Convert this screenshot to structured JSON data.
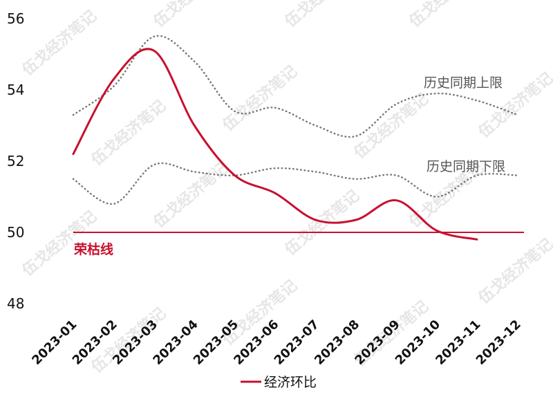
{
  "chart_data": {
    "type": "line",
    "categories": [
      "2023-01",
      "2023-02",
      "2023-03",
      "2023-04",
      "2023-05",
      "2023-06",
      "2023-07",
      "2023-08",
      "2023-09",
      "2023-10",
      "2023-11",
      "2023-12"
    ],
    "ylim": [
      48,
      56
    ],
    "yticks": [
      "56",
      "54",
      "52",
      "50",
      "48"
    ],
    "grid": false,
    "series": [
      {
        "name": "经济环比",
        "color": "#c8102e",
        "style": "solid",
        "values": [
          52.2,
          54.3,
          55.1,
          53.0,
          51.6,
          51.1,
          50.35,
          50.35,
          50.9,
          50.05,
          49.8,
          null
        ]
      },
      {
        "name": "历史同期上限",
        "color": "#777777",
        "style": "dotted",
        "values": [
          53.3,
          54.1,
          55.5,
          54.8,
          53.4,
          53.5,
          53.0,
          52.7,
          53.6,
          53.9,
          53.7,
          53.3
        ]
      },
      {
        "name": "历史同期下限",
        "color": "#777777",
        "style": "dotted",
        "values": [
          51.5,
          50.8,
          51.9,
          51.7,
          51.6,
          51.8,
          51.7,
          51.5,
          51.6,
          51.0,
          51.6,
          51.6
        ]
      }
    ],
    "reference_line": {
      "value": 50,
      "label": "荣枯线",
      "color": "#c8102e"
    },
    "annotations": [
      "历史同期上限",
      "历史同期下限"
    ],
    "legend": {
      "placement": "bottom-center",
      "entries": [
        "经济环比"
      ]
    }
  },
  "watermark": "伍戈经济笔记"
}
